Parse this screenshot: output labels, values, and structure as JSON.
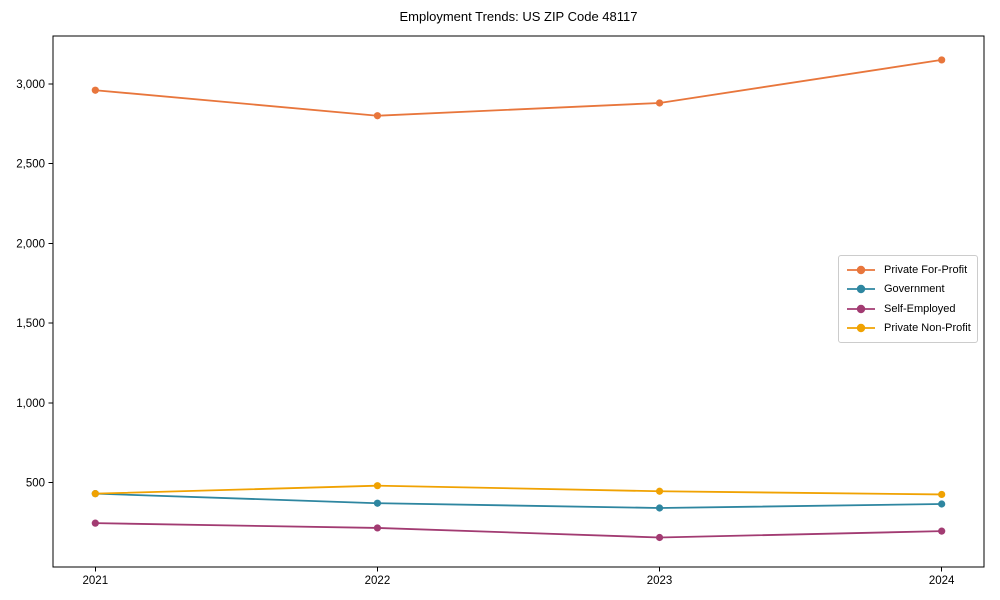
{
  "title": "Employment Trends: US ZIP Code 48117",
  "chart_data": {
    "type": "line",
    "x": [
      2021,
      2022,
      2023,
      2024
    ],
    "x_tick_labels": [
      "2021",
      "2022",
      "2023",
      "2024"
    ],
    "y_ticks": [
      500,
      1000,
      1500,
      2000,
      2500,
      3000
    ],
    "y_tick_labels": [
      "500",
      "1,000",
      "1,500",
      "2,000",
      "2,500",
      "3,000"
    ],
    "xlim": [
      2020.85,
      2024.15
    ],
    "ylim": [
      -30,
      3300
    ],
    "grid": false,
    "legend_position": "center-right",
    "title": "Employment Trends: US ZIP Code 48117",
    "xlabel": "",
    "ylabel": "",
    "series": [
      {
        "name": "Private For-Profit",
        "color": "#E8763C",
        "values": [
          2960,
          2800,
          2880,
          3150
        ]
      },
      {
        "name": "Government",
        "color": "#2E86A0",
        "values": [
          430,
          370,
          340,
          365
        ]
      },
      {
        "name": "Self-Employed",
        "color": "#A23B72",
        "values": [
          245,
          215,
          155,
          195
        ]
      },
      {
        "name": "Private Non-Profit",
        "color": "#F0A202",
        "values": [
          430,
          480,
          445,
          425
        ]
      }
    ]
  }
}
